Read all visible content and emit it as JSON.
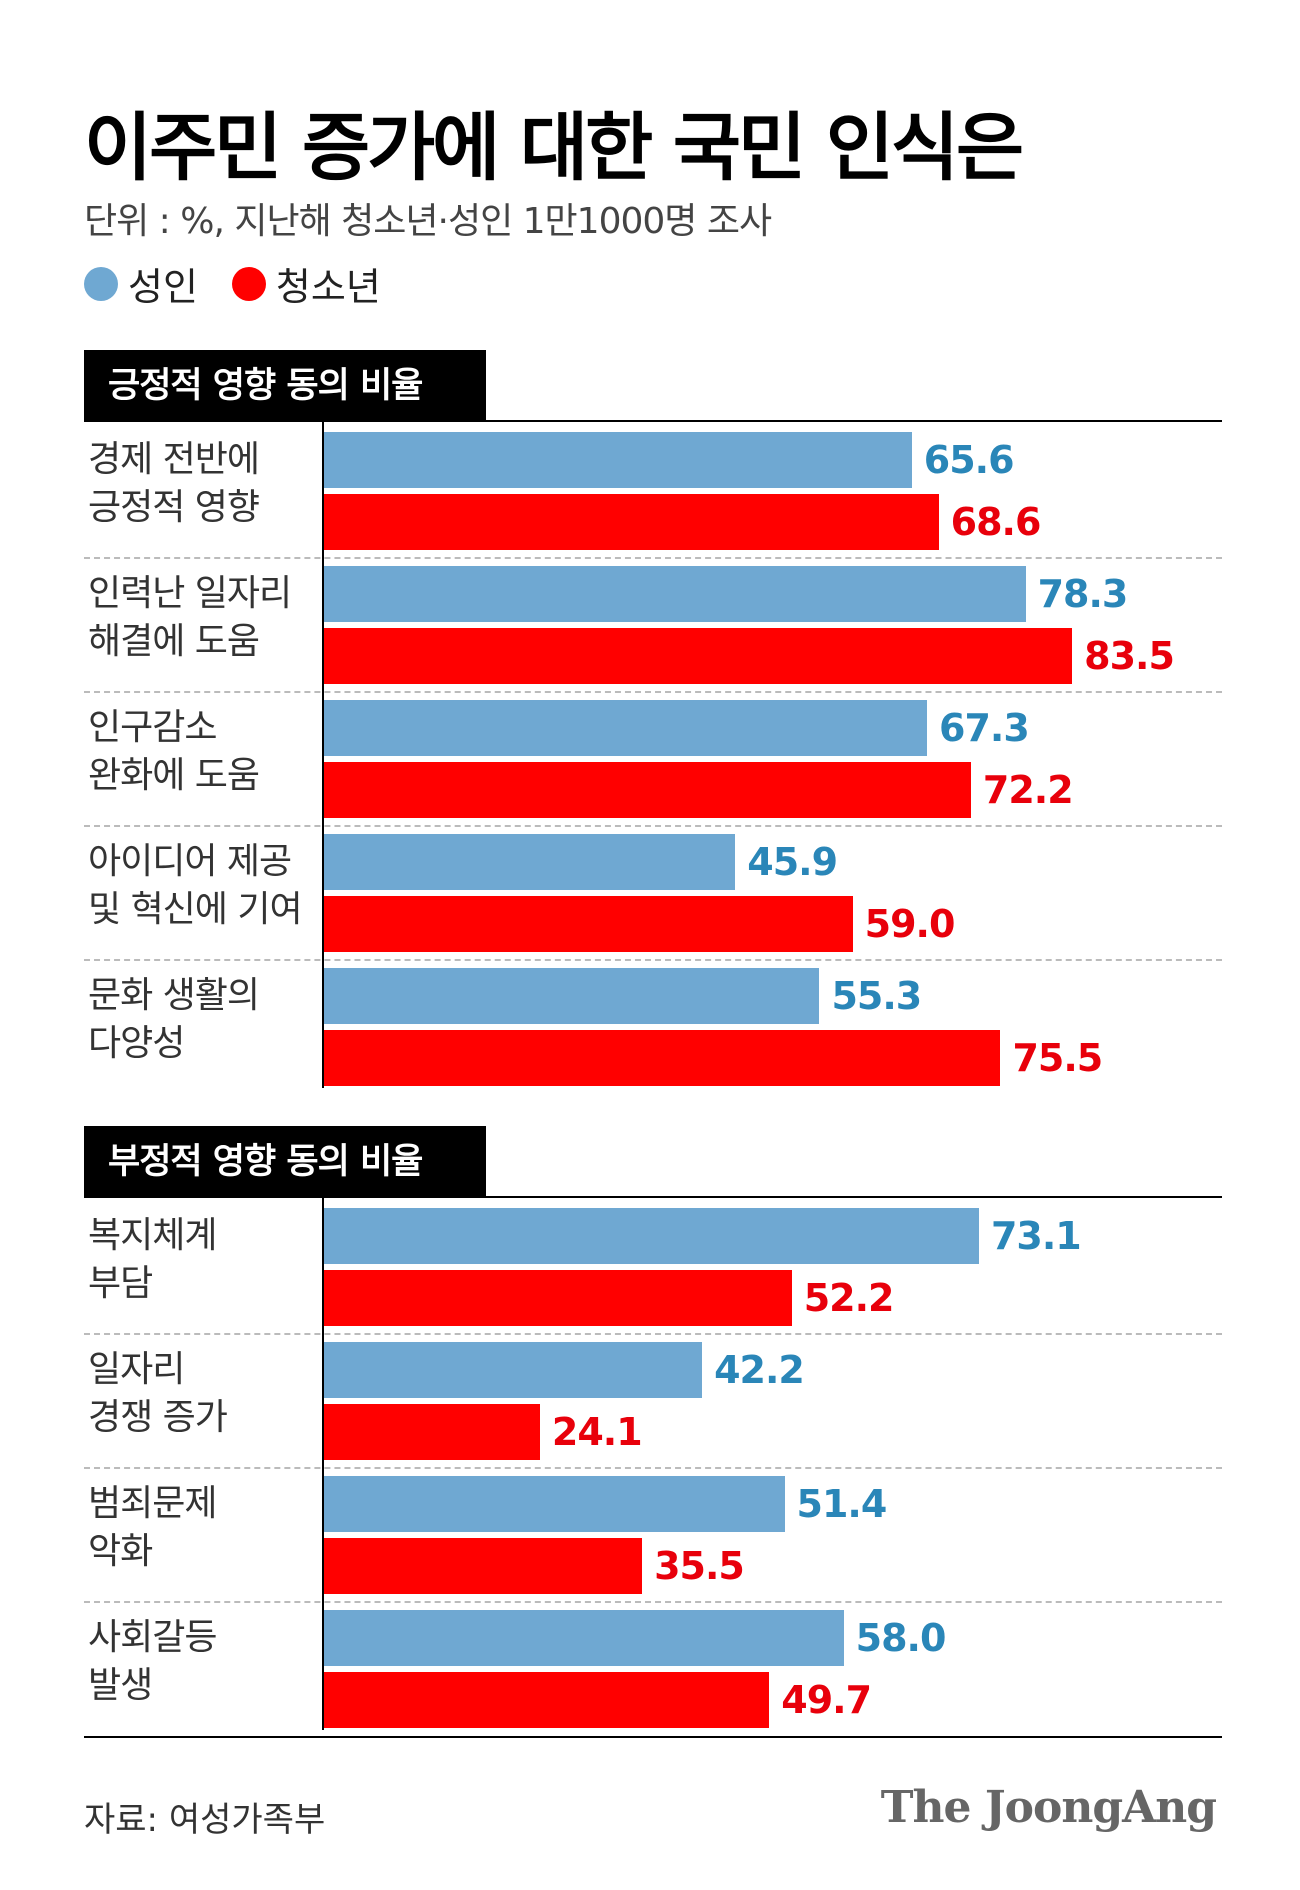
{
  "title": "이주민 증가에 대한 국민 인식은",
  "subtitle": "단위 : %, 지난해 청소년·성인 1만1000명 조사",
  "legend": [
    {
      "label": "성인",
      "color": "#6fa8d2"
    },
    {
      "label": "청소년",
      "color": "#ff0000"
    }
  ],
  "source": "자료: 여성가족부",
  "brand": "The JoongAng",
  "colors": {
    "adult_bar": "#6fa8d2",
    "adult_text": "#2a86b8",
    "youth_bar": "#ff0000",
    "youth_text": "#e8000b"
  },
  "chart_data": [
    {
      "type": "bar",
      "orientation": "horizontal",
      "title": "긍정적 영향 동의 비율",
      "categories": [
        [
          "경제 전반에",
          "긍정적 영향"
        ],
        [
          "인력난 일자리",
          "해결에 도움"
        ],
        [
          "인구감소",
          "완화에 도움"
        ],
        [
          "아이디어 제공",
          "및 혁신에 기여"
        ],
        [
          "문화 생활의",
          "다양성"
        ]
      ],
      "series": [
        {
          "name": "성인",
          "values": [
            65.6,
            78.3,
            67.3,
            45.9,
            55.3
          ]
        },
        {
          "name": "청소년",
          "values": [
            68.6,
            83.5,
            72.2,
            59.0,
            75.5
          ]
        }
      ],
      "value_labels": {
        "성인": [
          "65.6",
          "78.3",
          "67.3",
          "45.9",
          "55.3"
        ],
        "청소년": [
          "68.6",
          "83.5",
          "72.2",
          "59.0",
          "75.5"
        ]
      },
      "xlim": [
        0,
        100
      ]
    },
    {
      "type": "bar",
      "orientation": "horizontal",
      "title": "부정적 영향 동의 비율",
      "categories": [
        [
          "복지체계",
          "부담"
        ],
        [
          "일자리",
          "경쟁 증가"
        ],
        [
          "범죄문제",
          "악화"
        ],
        [
          "사회갈등",
          "발생"
        ]
      ],
      "series": [
        {
          "name": "성인",
          "values": [
            73.1,
            42.2,
            51.4,
            58.0
          ]
        },
        {
          "name": "청소년",
          "values": [
            52.2,
            24.1,
            35.5,
            49.7
          ]
        }
      ],
      "value_labels": {
        "성인": [
          "73.1",
          "42.2",
          "51.4",
          "58.0"
        ],
        "청소년": [
          "52.2",
          "24.1",
          "35.5",
          "49.7"
        ]
      },
      "xlim": [
        0,
        100
      ]
    }
  ]
}
